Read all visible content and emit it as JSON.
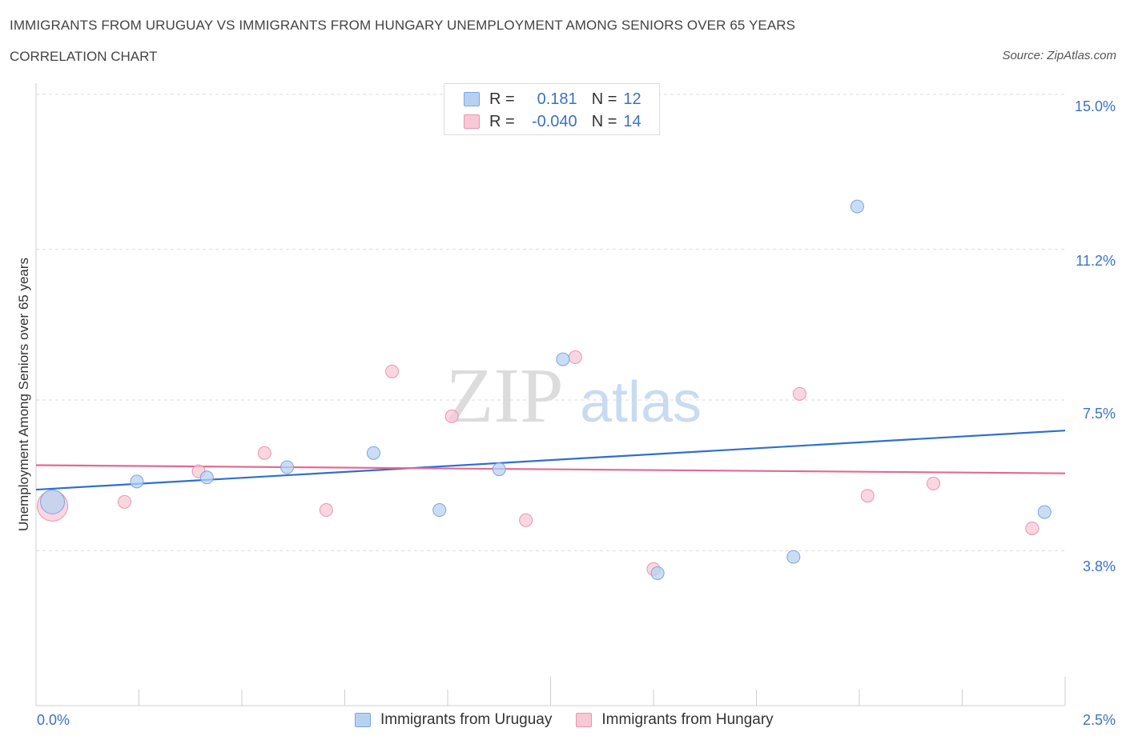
{
  "title": "IMMIGRANTS FROM URUGUAY VS IMMIGRANTS FROM HUNGARY UNEMPLOYMENT AMONG SENIORS OVER 65 YEARS",
  "subtitle": "CORRELATION CHART",
  "source": "Source: ZipAtlas.com",
  "watermark": {
    "zip": "ZIP",
    "atlas": "atlas"
  },
  "legend": {
    "uruguay": {
      "r_label": "R =",
      "r_value": "0.181",
      "n_label": "N =",
      "n_value": "12"
    },
    "hungary": {
      "r_label": "R =",
      "r_value": "-0.040",
      "n_label": "N =",
      "n_value": "14"
    }
  },
  "colors": {
    "uruguay_fill": "#b8d1f3",
    "uruguay_stroke": "#7aa5e0",
    "uruguay_line": "#2f6fcf",
    "hungary_fill": "#f8c8d6",
    "hungary_stroke": "#e896b0",
    "hungary_line": "#e26a93",
    "tick_text": "#3a72c4",
    "grid": "#dddddd"
  },
  "chart_data": {
    "type": "scatter",
    "title": "IMMIGRANTS FROM URUGUAY VS IMMIGRANTS FROM HUNGARY UNEMPLOYMENT AMONG SENIORS OVER 65 YEARS",
    "xlabel": "",
    "ylabel": "Unemployment Among Seniors over 65 years",
    "xlim": [
      0,
      2.5
    ],
    "ylim": [
      0,
      15.0
    ],
    "x_tick_labels": [
      "0.0%",
      "2.5%"
    ],
    "y_ticks": [
      3.8,
      7.5,
      11.2,
      15.0
    ],
    "y_tick_labels": [
      "3.8%",
      "7.5%",
      "11.2%",
      "15.0%"
    ],
    "grid": true,
    "series": [
      {
        "name": "Immigrants from Uruguay",
        "points": [
          {
            "x": 0.04,
            "y": 5.0,
            "big": true
          },
          {
            "x": 0.245,
            "y": 5.5
          },
          {
            "x": 0.415,
            "y": 5.6
          },
          {
            "x": 0.61,
            "y": 5.85
          },
          {
            "x": 0.82,
            "y": 6.2
          },
          {
            "x": 0.98,
            "y": 4.8
          },
          {
            "x": 1.125,
            "y": 5.8
          },
          {
            "x": 1.28,
            "y": 8.5
          },
          {
            "x": 1.51,
            "y": 3.25
          },
          {
            "x": 1.84,
            "y": 3.65
          },
          {
            "x": 1.995,
            "y": 12.25
          },
          {
            "x": 2.45,
            "y": 4.75
          }
        ],
        "trend": {
          "x": [
            0.0,
            2.5
          ],
          "y": [
            5.3,
            6.75
          ]
        }
      },
      {
        "name": "Immigrants from Hungary",
        "points": [
          {
            "x": 0.04,
            "y": 4.9,
            "big": true
          },
          {
            "x": 0.215,
            "y": 5.0
          },
          {
            "x": 0.395,
            "y": 5.75
          },
          {
            "x": 0.555,
            "y": 6.2
          },
          {
            "x": 0.705,
            "y": 4.8
          },
          {
            "x": 0.865,
            "y": 8.2
          },
          {
            "x": 1.01,
            "y": 7.1
          },
          {
            "x": 1.19,
            "y": 4.55
          },
          {
            "x": 1.31,
            "y": 8.55
          },
          {
            "x": 1.5,
            "y": 3.35
          },
          {
            "x": 1.855,
            "y": 7.65
          },
          {
            "x": 2.02,
            "y": 5.15
          },
          {
            "x": 2.18,
            "y": 5.45
          },
          {
            "x": 2.42,
            "y": 4.35
          }
        ],
        "trend": {
          "x": [
            0.0,
            2.5
          ],
          "y": [
            5.9,
            5.7
          ]
        }
      }
    ]
  }
}
